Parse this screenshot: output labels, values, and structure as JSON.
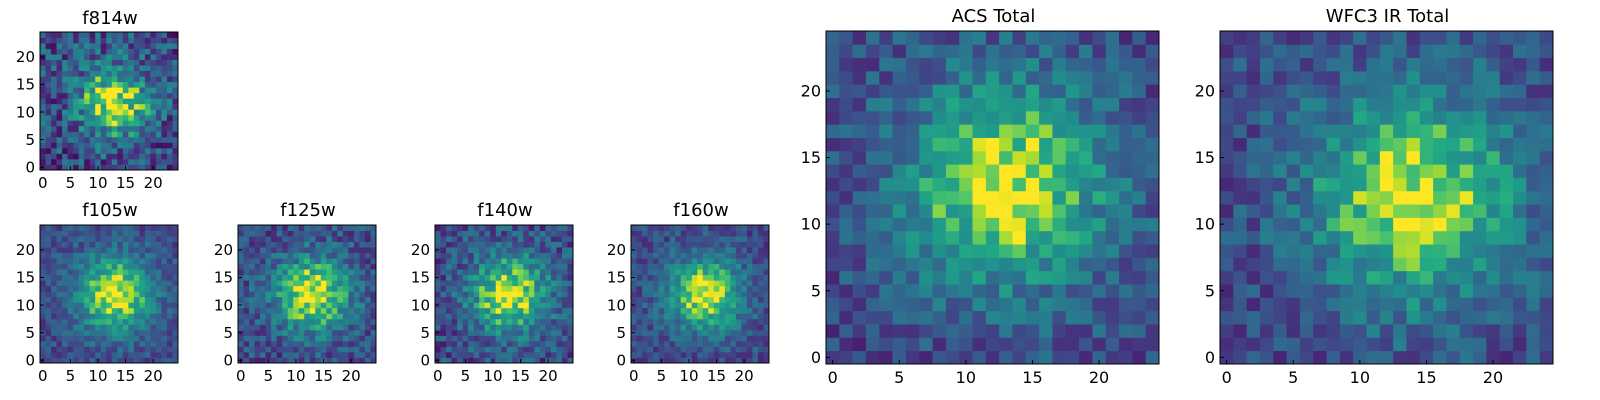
{
  "figure": {
    "description_colormap": "viridis"
  },
  "chart_data": [
    {
      "type": "heatmap",
      "title": "f814w",
      "grid": [
        25,
        25
      ],
      "xticks": [
        "0",
        "5",
        "10",
        "15",
        "20"
      ],
      "yticks": [
        "0",
        "5",
        "10",
        "15",
        "20"
      ],
      "xlim": [
        -0.5,
        24.5
      ],
      "ylim": [
        -0.5,
        24.5
      ],
      "peak": [
        13,
        12
      ],
      "spread": 4.5,
      "noise": 0.55,
      "seed": 11
    },
    {
      "type": "heatmap",
      "title": "f105w",
      "grid": [
        25,
        25
      ],
      "xticks": [
        "0",
        "5",
        "10",
        "15",
        "20"
      ],
      "yticks": [
        "0",
        "5",
        "10",
        "15",
        "20"
      ],
      "xlim": [
        -0.5,
        24.5
      ],
      "ylim": [
        -0.5,
        24.5
      ],
      "peak": [
        13,
        12
      ],
      "spread": 5.0,
      "noise": 0.3,
      "seed": 23
    },
    {
      "type": "heatmap",
      "title": "f125w",
      "grid": [
        25,
        25
      ],
      "xticks": [
        "0",
        "5",
        "10",
        "15",
        "20"
      ],
      "yticks": [
        "0",
        "5",
        "10",
        "15",
        "20"
      ],
      "xlim": [
        -0.5,
        24.5
      ],
      "ylim": [
        -0.5,
        24.5
      ],
      "peak": [
        13,
        12
      ],
      "spread": 5.0,
      "noise": 0.4,
      "seed": 37
    },
    {
      "type": "heatmap",
      "title": "f140w",
      "grid": [
        25,
        25
      ],
      "xticks": [
        "0",
        "5",
        "10",
        "15",
        "20"
      ],
      "yticks": [
        "0",
        "5",
        "10",
        "15",
        "20"
      ],
      "xlim": [
        -0.5,
        24.5
      ],
      "ylim": [
        -0.5,
        24.5
      ],
      "peak": [
        13,
        12
      ],
      "spread": 5.0,
      "noise": 0.42,
      "seed": 41
    },
    {
      "type": "heatmap",
      "title": "f160w",
      "grid": [
        25,
        25
      ],
      "xticks": [
        "0",
        "5",
        "10",
        "15",
        "20"
      ],
      "yticks": [
        "0",
        "5",
        "10",
        "15",
        "20"
      ],
      "xlim": [
        -0.5,
        24.5
      ],
      "ylim": [
        -0.5,
        24.5
      ],
      "peak": [
        13,
        12
      ],
      "spread": 4.8,
      "noise": 0.32,
      "seed": 53
    },
    {
      "type": "heatmap",
      "title": "ACS Total",
      "grid": [
        25,
        25
      ],
      "xticks": [
        "0",
        "5",
        "10",
        "15",
        "20"
      ],
      "yticks": [
        "0",
        "5",
        "10",
        "15",
        "20"
      ],
      "xlim": [
        -0.5,
        24.5
      ],
      "ylim": [
        -0.5,
        24.5
      ],
      "peak": [
        13,
        13
      ],
      "spread": 5.5,
      "noise": 0.35,
      "seed": 67
    },
    {
      "type": "heatmap",
      "title": "WFC3 IR Total",
      "grid": [
        25,
        25
      ],
      "xticks": [
        "0",
        "5",
        "10",
        "15",
        "20"
      ],
      "yticks": [
        "0",
        "5",
        "10",
        "15",
        "20"
      ],
      "xlim": [
        -0.5,
        24.5
      ],
      "ylim": [
        -0.5,
        24.5
      ],
      "peak": [
        14,
        12
      ],
      "spread": 5.5,
      "noise": 0.35,
      "seed": 79
    }
  ]
}
